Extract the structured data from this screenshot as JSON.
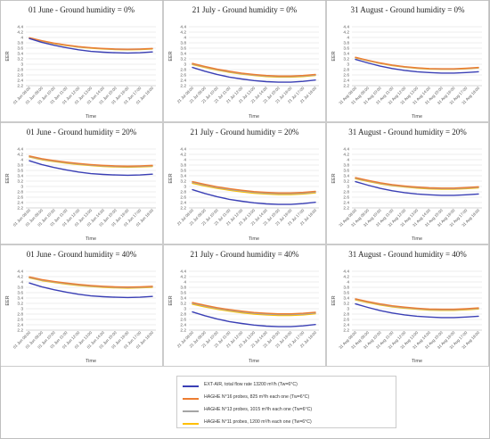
{
  "figure": {
    "x_categories": [
      "08:00",
      "09:00",
      "10:00",
      "11:00",
      "12:00",
      "13:00",
      "14:00",
      "15:00",
      "16:00",
      "17:00",
      "18:00"
    ],
    "colors": {
      "grid": "#d9d9d9",
      "panel_border": "#bfbfbf",
      "text": "#222222"
    },
    "legend": [
      {
        "label": "EXT-AIR, total flow rate 13200 m³/h (Tw=6°C)",
        "color": "#3a3fb5"
      },
      {
        "label": "HAGHE N°16 probes, 825 m³/h each one (Tw=6°C)",
        "color": "#ed7d31"
      },
      {
        "label": "HAGHE N°13 probes, 1015 m³/h each one (Tw=6°C)",
        "color": "#a5a5a5"
      },
      {
        "label": "HAGHE N°11 probes, 1200 m³/h each one (Tw=6°C)",
        "color": "#ffc000"
      }
    ]
  },
  "chart_data": [
    {
      "type": "line",
      "title": "01 June - Ground humidity = 0%",
      "date_prefix": "01 Jun",
      "xlabel": "Time",
      "ylabel": "EER",
      "ylim": [
        2.2,
        4.4
      ],
      "yticks": [
        2.2,
        2.4,
        2.6,
        2.8,
        3,
        3.2,
        3.4,
        3.6,
        3.8,
        4,
        4.2,
        4.4
      ],
      "series": [
        {
          "color": "#3a3fb5",
          "values": [
            3.96,
            3.82,
            3.71,
            3.62,
            3.54,
            3.48,
            3.45,
            3.43,
            3.42,
            3.43,
            3.46
          ]
        },
        {
          "color": "#ed7d31",
          "values": [
            3.99,
            3.88,
            3.79,
            3.72,
            3.66,
            3.62,
            3.59,
            3.57,
            3.56,
            3.57,
            3.59
          ]
        },
        {
          "color": "#a5a5a5",
          "values": [
            3.98,
            3.87,
            3.78,
            3.71,
            3.65,
            3.61,
            3.58,
            3.56,
            3.55,
            3.56,
            3.58
          ]
        },
        {
          "color": "#ffc000",
          "values": [
            3.97,
            3.86,
            3.77,
            3.7,
            3.64,
            3.6,
            3.57,
            3.55,
            3.54,
            3.55,
            3.57
          ]
        }
      ]
    },
    {
      "type": "line",
      "title": "21 July - Ground humidity = 0%",
      "date_prefix": "21 Jul",
      "xlabel": "Time",
      "ylabel": "EER",
      "ylim": [
        2.2,
        4.4
      ],
      "yticks": [
        2.2,
        2.4,
        2.6,
        2.8,
        3,
        3.2,
        3.4,
        3.6,
        3.8,
        4,
        4.2,
        4.4
      ],
      "series": [
        {
          "color": "#3a3fb5",
          "values": [
            2.88,
            2.74,
            2.62,
            2.52,
            2.45,
            2.39,
            2.35,
            2.33,
            2.33,
            2.36,
            2.41
          ]
        },
        {
          "color": "#ed7d31",
          "values": [
            3.03,
            2.92,
            2.82,
            2.74,
            2.67,
            2.62,
            2.58,
            2.56,
            2.56,
            2.58,
            2.62
          ]
        },
        {
          "color": "#a5a5a5",
          "values": [
            3.01,
            2.9,
            2.8,
            2.72,
            2.65,
            2.6,
            2.56,
            2.54,
            2.54,
            2.56,
            2.6
          ]
        },
        {
          "color": "#ffc000",
          "values": [
            2.99,
            2.88,
            2.78,
            2.7,
            2.63,
            2.58,
            2.54,
            2.52,
            2.52,
            2.54,
            2.58
          ]
        }
      ]
    },
    {
      "type": "line",
      "title": "31 August - Ground humidity = 0%",
      "date_prefix": "31 Aug",
      "xlabel": "Time",
      "ylabel": "EER",
      "ylim": [
        2.2,
        4.4
      ],
      "yticks": [
        2.2,
        2.4,
        2.6,
        2.8,
        3,
        3.2,
        3.4,
        3.6,
        3.8,
        4,
        4.2,
        4.4
      ],
      "series": [
        {
          "color": "#3a3fb5",
          "values": [
            3.18,
            3.05,
            2.93,
            2.84,
            2.77,
            2.72,
            2.69,
            2.67,
            2.67,
            2.69,
            2.72
          ]
        },
        {
          "color": "#ed7d31",
          "values": [
            3.26,
            3.15,
            3.05,
            2.97,
            2.91,
            2.87,
            2.84,
            2.83,
            2.83,
            2.85,
            2.88
          ]
        },
        {
          "color": "#a5a5a5",
          "values": [
            3.25,
            3.14,
            3.04,
            2.96,
            2.9,
            2.86,
            2.83,
            2.82,
            2.82,
            2.84,
            2.87
          ]
        },
        {
          "color": "#ffc000",
          "values": [
            3.24,
            3.13,
            3.03,
            2.95,
            2.89,
            2.85,
            2.82,
            2.81,
            2.81,
            2.83,
            2.86
          ]
        }
      ]
    },
    {
      "type": "line",
      "title": "01 June - Ground humidity = 20%",
      "date_prefix": "01 Jun",
      "xlabel": "Time",
      "ylabel": "EER",
      "ylim": [
        2.2,
        4.4
      ],
      "yticks": [
        2.2,
        2.4,
        2.6,
        2.8,
        3,
        3.2,
        3.4,
        3.6,
        3.8,
        4,
        4.2,
        4.4
      ],
      "series": [
        {
          "color": "#3a3fb5",
          "values": [
            3.96,
            3.82,
            3.71,
            3.62,
            3.54,
            3.48,
            3.45,
            3.43,
            3.42,
            3.43,
            3.46
          ]
        },
        {
          "color": "#ed7d31",
          "values": [
            4.14,
            4.04,
            3.97,
            3.91,
            3.86,
            3.82,
            3.79,
            3.77,
            3.76,
            3.77,
            3.79
          ]
        },
        {
          "color": "#a5a5a5",
          "values": [
            4.12,
            4.02,
            3.95,
            3.89,
            3.84,
            3.8,
            3.77,
            3.75,
            3.74,
            3.75,
            3.77
          ]
        },
        {
          "color": "#ffc000",
          "values": [
            4.1,
            4.0,
            3.93,
            3.87,
            3.82,
            3.78,
            3.75,
            3.73,
            3.72,
            3.73,
            3.75
          ]
        }
      ]
    },
    {
      "type": "line",
      "title": "21 July - Ground humidity = 20%",
      "date_prefix": "21 Jul",
      "xlabel": "Time",
      "ylabel": "EER",
      "ylim": [
        2.2,
        4.4
      ],
      "yticks": [
        2.2,
        2.4,
        2.6,
        2.8,
        3,
        3.2,
        3.4,
        3.6,
        3.8,
        4,
        4.2,
        4.4
      ],
      "series": [
        {
          "color": "#3a3fb5",
          "values": [
            2.88,
            2.74,
            2.62,
            2.52,
            2.45,
            2.39,
            2.35,
            2.33,
            2.33,
            2.36,
            2.41
          ]
        },
        {
          "color": "#ed7d31",
          "values": [
            3.18,
            3.08,
            2.99,
            2.92,
            2.86,
            2.81,
            2.78,
            2.76,
            2.76,
            2.78,
            2.82
          ]
        },
        {
          "color": "#a5a5a5",
          "values": [
            3.15,
            3.05,
            2.96,
            2.89,
            2.83,
            2.78,
            2.75,
            2.73,
            2.73,
            2.75,
            2.79
          ]
        },
        {
          "color": "#ffc000",
          "values": [
            3.12,
            3.02,
            2.93,
            2.86,
            2.8,
            2.75,
            2.72,
            2.7,
            2.7,
            2.72,
            2.76
          ]
        }
      ]
    },
    {
      "type": "line",
      "title": "31 August - Ground humidity = 20%",
      "date_prefix": "31 Aug",
      "xlabel": "Time",
      "ylabel": "EER",
      "ylim": [
        2.2,
        4.4
      ],
      "yticks": [
        2.2,
        2.4,
        2.6,
        2.8,
        3,
        3.2,
        3.4,
        3.6,
        3.8,
        4,
        4.2,
        4.4
      ],
      "series": [
        {
          "color": "#3a3fb5",
          "values": [
            3.18,
            3.05,
            2.93,
            2.84,
            2.77,
            2.72,
            2.69,
            2.67,
            2.67,
            2.69,
            2.72
          ]
        },
        {
          "color": "#ed7d31",
          "values": [
            3.33,
            3.23,
            3.14,
            3.07,
            3.02,
            2.98,
            2.95,
            2.94,
            2.94,
            2.96,
            2.99
          ]
        },
        {
          "color": "#a5a5a5",
          "values": [
            3.31,
            3.21,
            3.12,
            3.05,
            3.0,
            2.96,
            2.93,
            2.92,
            2.92,
            2.94,
            2.97
          ]
        },
        {
          "color": "#ffc000",
          "values": [
            3.29,
            3.19,
            3.1,
            3.03,
            2.98,
            2.94,
            2.91,
            2.9,
            2.9,
            2.92,
            2.95
          ]
        }
      ]
    },
    {
      "type": "line",
      "title": "01 June - Ground humidity = 40%",
      "date_prefix": "01 Jun",
      "xlabel": "Time",
      "ylabel": "EER",
      "ylim": [
        2.2,
        4.4
      ],
      "yticks": [
        2.2,
        2.4,
        2.6,
        2.8,
        3,
        3.2,
        3.4,
        3.6,
        3.8,
        4,
        4.2,
        4.4
      ],
      "series": [
        {
          "color": "#3a3fb5",
          "values": [
            3.96,
            3.82,
            3.71,
            3.62,
            3.54,
            3.48,
            3.45,
            3.43,
            3.42,
            3.43,
            3.46
          ]
        },
        {
          "color": "#ed7d31",
          "values": [
            4.19,
            4.09,
            4.02,
            3.96,
            3.91,
            3.87,
            3.84,
            3.82,
            3.81,
            3.82,
            3.84
          ]
        },
        {
          "color": "#a5a5a5",
          "values": [
            4.17,
            4.07,
            4.0,
            3.94,
            3.89,
            3.85,
            3.82,
            3.8,
            3.79,
            3.8,
            3.82
          ]
        },
        {
          "color": "#ffc000",
          "values": [
            4.15,
            4.05,
            3.98,
            3.92,
            3.87,
            3.83,
            3.8,
            3.78,
            3.77,
            3.78,
            3.8
          ]
        }
      ]
    },
    {
      "type": "line",
      "title": "21 July - Ground humidity = 40%",
      "date_prefix": "21 Jul",
      "xlabel": "Time",
      "ylabel": "EER",
      "ylim": [
        2.2,
        4.4
      ],
      "yticks": [
        2.2,
        2.4,
        2.6,
        2.8,
        3,
        3.2,
        3.4,
        3.6,
        3.8,
        4,
        4.2,
        4.4
      ],
      "series": [
        {
          "color": "#3a3fb5",
          "values": [
            2.88,
            2.74,
            2.62,
            2.52,
            2.45,
            2.39,
            2.35,
            2.33,
            2.33,
            2.36,
            2.41
          ]
        },
        {
          "color": "#ed7d31",
          "values": [
            3.23,
            3.13,
            3.04,
            2.97,
            2.91,
            2.86,
            2.83,
            2.81,
            2.81,
            2.83,
            2.87
          ]
        },
        {
          "color": "#a5a5a5",
          "values": [
            3.2,
            3.1,
            3.01,
            2.94,
            2.88,
            2.83,
            2.8,
            2.78,
            2.78,
            2.8,
            2.84
          ]
        },
        {
          "color": "#ffc000",
          "values": [
            3.17,
            3.07,
            2.98,
            2.91,
            2.85,
            2.8,
            2.77,
            2.75,
            2.75,
            2.77,
            2.81
          ]
        }
      ]
    },
    {
      "type": "line",
      "title": "31 August - Ground humidity = 40%",
      "date_prefix": "31 Aug",
      "xlabel": "Time",
      "ylabel": "EER",
      "ylim": [
        2.2,
        4.4
      ],
      "yticks": [
        2.2,
        2.4,
        2.6,
        2.8,
        3,
        3.2,
        3.4,
        3.6,
        3.8,
        4,
        4.2,
        4.4
      ],
      "series": [
        {
          "color": "#3a3fb5",
          "values": [
            3.18,
            3.05,
            2.93,
            2.84,
            2.77,
            2.72,
            2.69,
            2.67,
            2.67,
            2.69,
            2.72
          ]
        },
        {
          "color": "#ed7d31",
          "values": [
            3.37,
            3.27,
            3.18,
            3.11,
            3.06,
            3.02,
            2.99,
            2.98,
            2.98,
            3.0,
            3.03
          ]
        },
        {
          "color": "#a5a5a5",
          "values": [
            3.35,
            3.25,
            3.16,
            3.09,
            3.04,
            3.0,
            2.97,
            2.96,
            2.96,
            2.98,
            3.01
          ]
        },
        {
          "color": "#ffc000",
          "values": [
            3.33,
            3.23,
            3.14,
            3.07,
            3.02,
            2.98,
            2.95,
            2.94,
            2.94,
            2.96,
            2.99
          ]
        }
      ]
    }
  ]
}
